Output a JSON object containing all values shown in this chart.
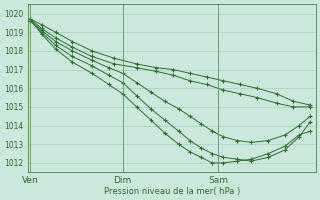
{
  "bg_color": "#cce8dc",
  "grid_color": "#a8cfc0",
  "line_color": "#2d6e2d",
  "marker": "+",
  "xlabel": "Pression niveau de la mer( hPa )",
  "xtick_labels": [
    "Ven",
    "Dim",
    "Sam"
  ],
  "ylim": [
    1011.5,
    1020.5
  ],
  "yticks": [
    1012,
    1013,
    1014,
    1015,
    1016,
    1017,
    1018,
    1019,
    1020
  ],
  "series": [
    {
      "x": [
        0.0,
        0.04,
        0.09,
        0.15,
        0.22,
        0.3,
        0.38,
        0.45,
        0.51,
        0.57,
        0.63,
        0.69,
        0.75,
        0.81,
        0.88,
        0.94,
        1.0
      ],
      "y": [
        1019.7,
        1019.4,
        1019.0,
        1018.5,
        1018.0,
        1017.6,
        1017.3,
        1017.1,
        1017.0,
        1016.8,
        1016.6,
        1016.4,
        1016.2,
        1016.0,
        1015.7,
        1015.3,
        1015.1
      ]
    },
    {
      "x": [
        0.0,
        0.04,
        0.09,
        0.15,
        0.22,
        0.3,
        0.38,
        0.45,
        0.51,
        0.57,
        0.63,
        0.69,
        0.75,
        0.81,
        0.88,
        0.94,
        1.0
      ],
      "y": [
        1019.7,
        1019.2,
        1018.7,
        1018.2,
        1017.7,
        1017.3,
        1017.1,
        1016.9,
        1016.7,
        1016.4,
        1016.2,
        1015.9,
        1015.7,
        1015.5,
        1015.2,
        1015.0,
        1015.0
      ]
    },
    {
      "x": [
        0.0,
        0.04,
        0.09,
        0.15,
        0.22,
        0.28,
        0.33,
        0.38,
        0.43,
        0.48,
        0.53,
        0.57,
        0.61,
        0.65,
        0.69,
        0.74,
        0.79,
        0.85,
        0.91,
        0.96,
        1.0
      ],
      "y": [
        1019.6,
        1019.1,
        1018.5,
        1018.0,
        1017.5,
        1017.1,
        1016.8,
        1016.3,
        1015.8,
        1015.3,
        1014.9,
        1014.5,
        1014.1,
        1013.7,
        1013.4,
        1013.2,
        1013.1,
        1013.2,
        1013.5,
        1014.0,
        1014.5
      ]
    },
    {
      "x": [
        0.0,
        0.04,
        0.09,
        0.15,
        0.22,
        0.28,
        0.33,
        0.38,
        0.43,
        0.48,
        0.53,
        0.57,
        0.61,
        0.65,
        0.69,
        0.74,
        0.79,
        0.85,
        0.91,
        0.96,
        1.0
      ],
      "y": [
        1019.6,
        1019.0,
        1018.3,
        1017.7,
        1017.2,
        1016.7,
        1016.3,
        1015.6,
        1014.9,
        1014.3,
        1013.7,
        1013.2,
        1012.8,
        1012.5,
        1012.3,
        1012.2,
        1012.1,
        1012.3,
        1012.7,
        1013.4,
        1014.2
      ]
    },
    {
      "x": [
        0.0,
        0.04,
        0.09,
        0.15,
        0.22,
        0.28,
        0.33,
        0.38,
        0.43,
        0.48,
        0.53,
        0.57,
        0.61,
        0.65,
        0.69,
        0.74,
        0.79,
        0.85,
        0.91,
        0.96,
        1.0
      ],
      "y": [
        1019.7,
        1018.9,
        1018.1,
        1017.4,
        1016.8,
        1016.2,
        1015.7,
        1015.0,
        1014.3,
        1013.6,
        1013.0,
        1012.6,
        1012.3,
        1012.0,
        1012.0,
        1012.1,
        1012.2,
        1012.5,
        1012.9,
        1013.5,
        1013.7
      ]
    }
  ],
  "xtick_positions": [
    0.0,
    0.33,
    0.67
  ],
  "vline_positions": [
    0.0,
    0.33,
    0.67
  ]
}
